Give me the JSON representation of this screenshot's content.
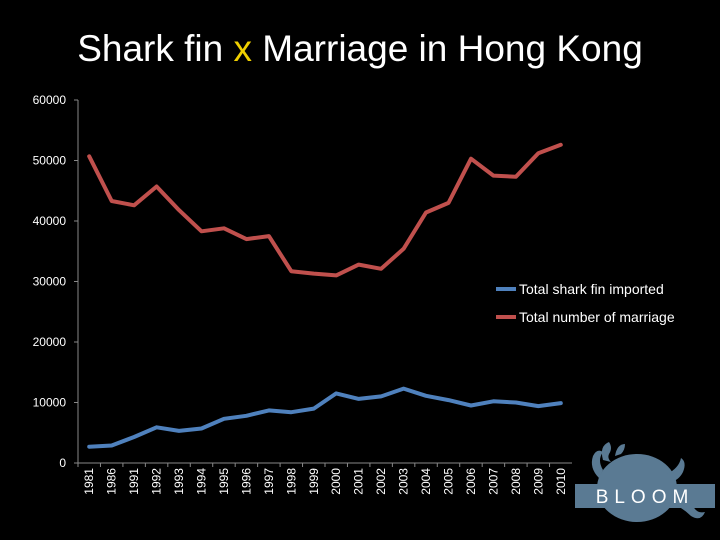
{
  "title": {
    "part1": "Shark fin ",
    "part2": "x",
    "part3": " Marriage in Hong Kong"
  },
  "colors": {
    "background": "#000000",
    "text": "#ffffff",
    "title_x": "#f0d000",
    "shark_fin": "#4f81bd",
    "marriage": "#c0504d",
    "logo": "#5a7a93"
  },
  "logo": {
    "text": "BLOOM",
    "icon": "octopus-icon"
  },
  "chart_data": {
    "type": "line",
    "x": [
      "1981",
      "1986",
      "1991",
      "1992",
      "1993",
      "1994",
      "1995",
      "1996",
      "1997",
      "1998",
      "1999",
      "2000",
      "2001",
      "2002",
      "2003",
      "2004",
      "2005",
      "2006",
      "2007",
      "2008",
      "2009",
      "2010"
    ],
    "ylim": [
      0,
      60000
    ],
    "yticks": [
      0,
      10000,
      20000,
      30000,
      40000,
      50000,
      60000
    ],
    "legend_position": "right",
    "grid": false,
    "series": [
      {
        "name": "Total shark fin imported",
        "color": "#4f81bd",
        "values": [
          2700,
          2900,
          4300,
          5900,
          5300,
          5700,
          7300,
          7800,
          8700,
          8400,
          9000,
          11500,
          10600,
          11000,
          12300,
          11100,
          10400,
          9500,
          10200,
          10000,
          9400,
          9900
        ]
      },
      {
        "name": "Total number of marriage",
        "color": "#c0504d",
        "values": [
          50700,
          43300,
          42600,
          45700,
          41800,
          38300,
          38800,
          37000,
          37500,
          31700,
          31300,
          31000,
          32800,
          32100,
          35400,
          41400,
          43000,
          50300,
          47500,
          47300,
          51200,
          52600
        ]
      }
    ]
  }
}
